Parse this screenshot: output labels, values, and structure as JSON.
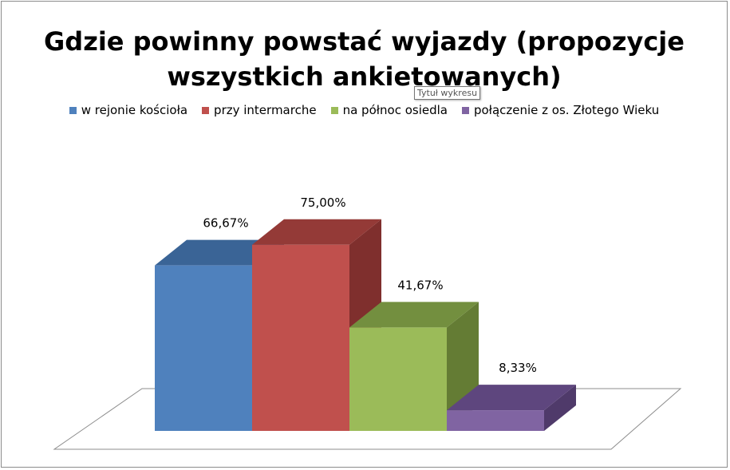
{
  "chart_data": {
    "type": "bar",
    "style": "3d-column",
    "title": "Gdzie powinny powstać wyjazdy (propozycje wszystkich ankietowanych)",
    "title_lines": [
      "Gdzie powinny powstać wyjazdy (propozycje",
      "wszystkich ankietowanych)"
    ],
    "series": [
      {
        "name": "w rejonie kościoła",
        "value": 66.67,
        "label": "66,67%",
        "color": "#4f81bd",
        "side": "#2f5688",
        "top": "#3a6496"
      },
      {
        "name": "przy intermarche",
        "value": 75.0,
        "label": "75,00%",
        "color": "#c0504d",
        "side": "#7f2f2d",
        "top": "#943a37"
      },
      {
        "name": "na północ osiedla",
        "value": 41.67,
        "label": "41,67%",
        "color": "#9bbb59",
        "side": "#647c34",
        "top": "#738f3f"
      },
      {
        "name": "połączenie z os. Złotego Wieku",
        "value": 8.33,
        "label": "8,33%",
        "color": "#8064a2",
        "side": "#4f3a6a",
        "top": "#5e467e"
      }
    ],
    "ylim": [
      0,
      100
    ],
    "legend_position": "top",
    "gridlines": false,
    "xlabel": "",
    "ylabel": ""
  },
  "tooltip": {
    "text": "Tytuł wykresu"
  }
}
